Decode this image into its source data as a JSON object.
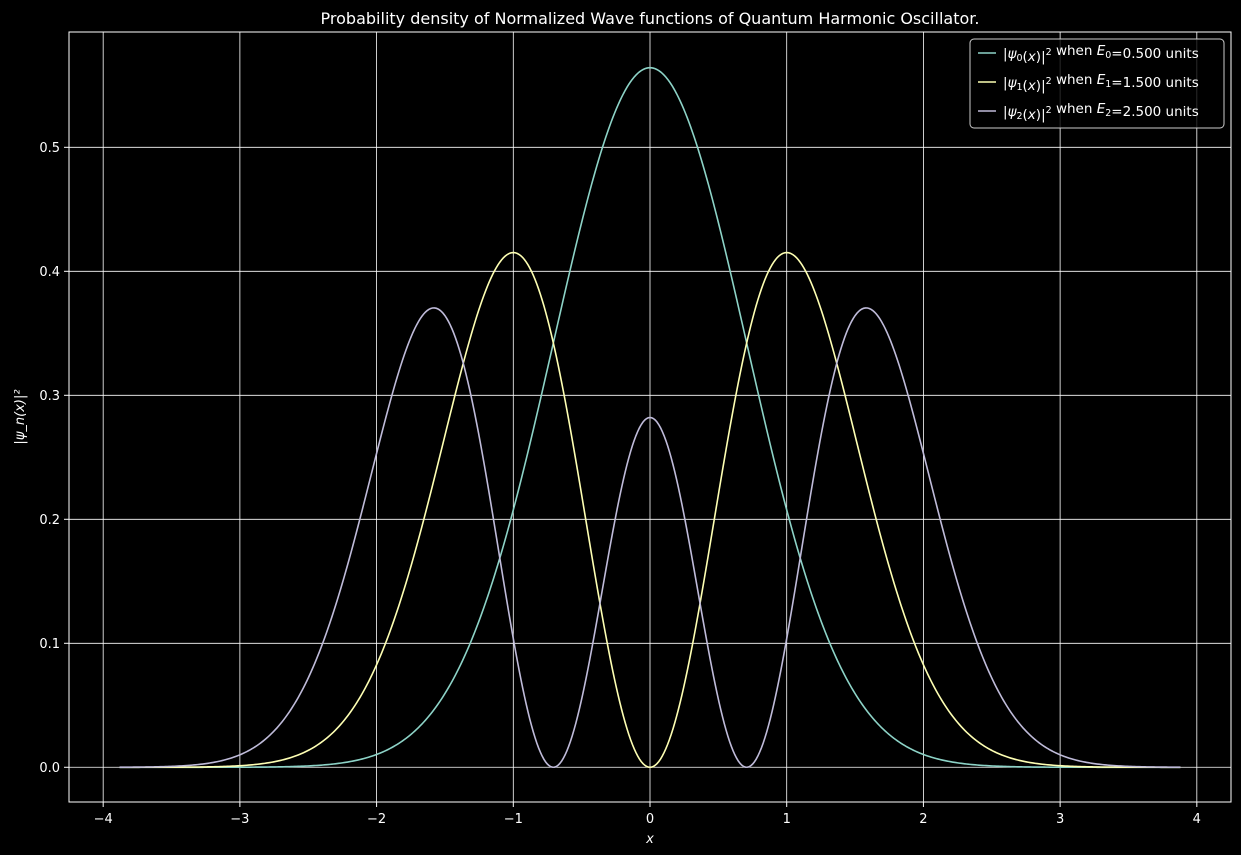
{
  "chart_data": {
    "type": "line",
    "title": "Probability density of Normalized Wave functions of Quantum Harmonic Oscillator.",
    "xlabel": "x",
    "ylabel": "|ψ_n(x)|²",
    "xlim": [
      -4.25,
      4.25
    ],
    "ylim": [
      -0.028,
      0.593
    ],
    "x_range": [
      -3.88,
      3.88
    ],
    "xticks": [
      -4,
      -3,
      -2,
      -1,
      0,
      1,
      2,
      3,
      4
    ],
    "xtick_labels": [
      "−4",
      "−3",
      "−2",
      "−1",
      "0",
      "1",
      "2",
      "3",
      "4"
    ],
    "yticks": [
      0.0,
      0.1,
      0.2,
      0.3,
      0.4,
      0.5
    ],
    "ytick_labels": [
      "0.0",
      "0.1",
      "0.2",
      "0.3",
      "0.4",
      "0.5"
    ],
    "grid": true,
    "legend_position": "top-right",
    "background": "#000000",
    "series": [
      {
        "name": "|ψ₀(x)|² when E₀=0.500 units",
        "legend": {
          "psi": "ψ",
          "sub": "0",
          "when": " when ",
          "E": "E",
          "value": "=0.500 units"
        },
        "n": 0,
        "color": "#8dd3c7",
        "peak": 0.564,
        "maxima_x": [
          0
        ]
      },
      {
        "name": "|ψ₁(x)|² when E₁=1.500 units",
        "legend": {
          "psi": "ψ",
          "sub": "1",
          "when": " when ",
          "E": "E",
          "value": "=1.500 units"
        },
        "n": 1,
        "color": "#feffb3",
        "peak": 0.415,
        "maxima_x": [
          -1,
          1
        ]
      },
      {
        "name": "|ψ₂(x)|² when E₂=2.500 units",
        "legend": {
          "psi": "ψ",
          "sub": "2",
          "when": " when ",
          "E": "E",
          "value": "=2.500 units"
        },
        "n": 2,
        "color": "#bfbbd9",
        "peak": 0.371,
        "maxima_x": [
          -1.58,
          0,
          1.58
        ]
      }
    ]
  }
}
